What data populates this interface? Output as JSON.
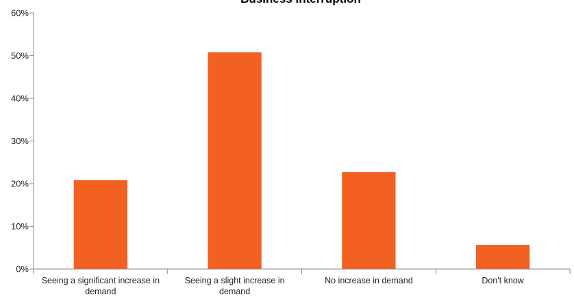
{
  "chart_data": {
    "type": "bar",
    "title": "Business Interruption",
    "xlabel": "",
    "ylabel": "",
    "categories": [
      [
        "Seeing a significant increase in",
        "demand"
      ],
      [
        "Seeing a slight increase in",
        "demand"
      ],
      [
        "No increase in demand"
      ],
      [
        "Don't know"
      ]
    ],
    "values": [
      20.8,
      50.8,
      22.7,
      5.6
    ],
    "ylim": [
      0,
      60
    ],
    "yticks": [
      0,
      10,
      20,
      30,
      40,
      50,
      60
    ],
    "ytick_labels": [
      "0%",
      "10%",
      "20%",
      "30%",
      "40%",
      "50%",
      "60%"
    ],
    "grid": false,
    "legend": "none",
    "bar_color": "#F26122",
    "axis_color": "#888888"
  }
}
